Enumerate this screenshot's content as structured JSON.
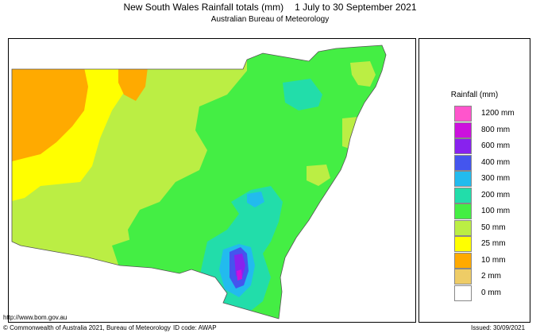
{
  "header": {
    "title": "New South Wales Rainfall totals (mm)",
    "dates": "1 July to 30 September 2021",
    "subtitle": "Australian Bureau of Meteorology"
  },
  "legend": {
    "title": "Rainfall (mm)",
    "items": [
      {
        "label": "1200 mm",
        "color": "#ff55cc"
      },
      {
        "label": "800 mm",
        "color": "#cc11dd"
      },
      {
        "label": "600 mm",
        "color": "#8822ee"
      },
      {
        "label": "400 mm",
        "color": "#4455ee"
      },
      {
        "label": "300 mm",
        "color": "#22bbee"
      },
      {
        "label": "200 mm",
        "color": "#22ddaa"
      },
      {
        "label": "100 mm",
        "color": "#44ee44"
      },
      {
        "label": "50 mm",
        "color": "#bbee44"
      },
      {
        "label": "25 mm",
        "color": "#ffff00"
      },
      {
        "label": "10 mm",
        "color": "#ffaa00"
      },
      {
        "label": "2 mm",
        "color": "#eecc66"
      },
      {
        "label": "0 mm",
        "color": "#ffffff"
      }
    ]
  },
  "map_colors": {
    "water": "#ffffff",
    "low_10": "#ffaa00",
    "band_25": "#ffff00",
    "band_50": "#bbee44",
    "band_100": "#44ee44",
    "band_200": "#22ddaa",
    "band_300": "#22bbee",
    "band_400": "#4455ee",
    "band_600": "#8822ee",
    "band_800": "#cc11dd",
    "band_1200": "#ff55cc"
  },
  "footer": {
    "url": "http://www.bom.gov.au",
    "copyright": "© Commonwealth of Australia 2021, Bureau of Meteorology",
    "id_code": "ID code: AWAP",
    "issued": "Issued: 30/09/2021"
  }
}
